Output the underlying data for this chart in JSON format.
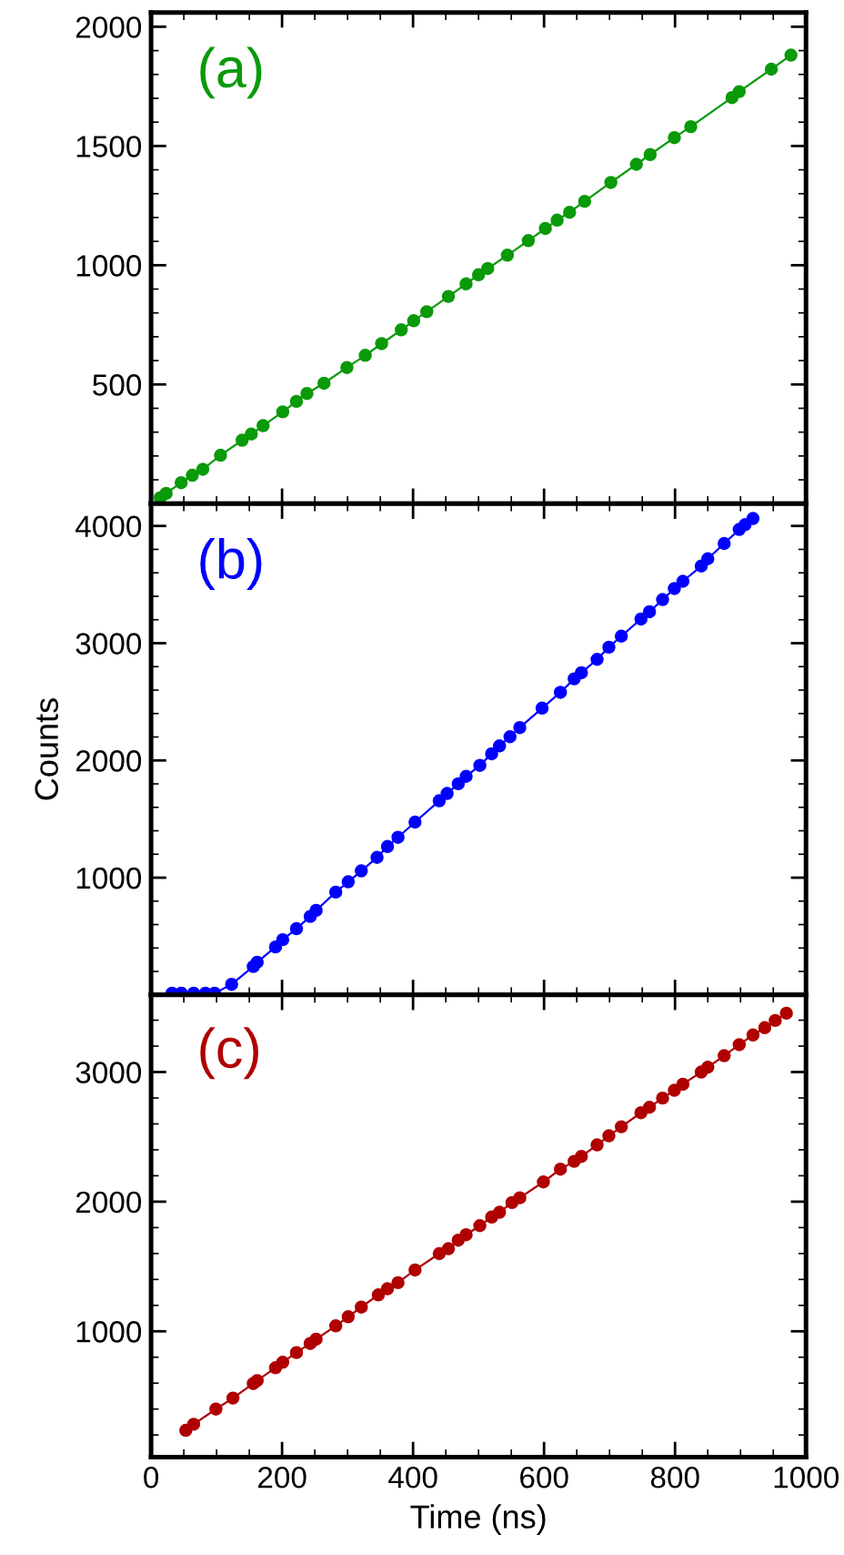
{
  "chart_data": [
    {
      "type": "line",
      "annotations": [
        "(a)"
      ],
      "marker": "circle",
      "grid": false,
      "legend": false,
      "tick_labels": "y",
      "xlim": [
        0,
        1000
      ],
      "xticks": [
        0,
        200,
        400,
        600,
        800,
        1000
      ],
      "ylim": [
        0,
        2060
      ],
      "yticks": [
        500,
        1000,
        1500,
        2000
      ],
      "series": [
        {
          "color": "#0a9a0a",
          "x": [
            14,
            23,
            46,
            63,
            79,
            106,
            139,
            153,
            171,
            201,
            222,
            238,
            264,
            299,
            327,
            352,
            382,
            401,
            421,
            454,
            481,
            500,
            514,
            544,
            576,
            602,
            620,
            639,
            662,
            702,
            741,
            762,
            799,
            824,
            887,
            898,
            947,
            977
          ],
          "values": [
            25,
            43,
            88,
            119,
            144,
            203,
            266,
            292,
            327,
            385,
            429,
            462,
            505,
            571,
            622,
            671,
            729,
            767,
            805,
            869,
            922,
            960,
            986,
            1042,
            1103,
            1154,
            1189,
            1222,
            1268,
            1347,
            1423,
            1464,
            1535,
            1581,
            1703,
            1728,
            1822,
            1881
          ]
        }
      ]
    },
    {
      "type": "line",
      "annotations": [
        "(b)"
      ],
      "marker": "circle",
      "grid": false,
      "legend": false,
      "tick_labels": "y",
      "ylabel": "Counts",
      "xlim": [
        0,
        1000
      ],
      "xticks": [
        0,
        200,
        400,
        600,
        800,
        1000
      ],
      "ylim": [
        0,
        4190
      ],
      "yticks": [
        1000,
        2000,
        3000,
        4000
      ],
      "series": [
        {
          "color": "#0000ff",
          "x": [
            32,
            46,
            65,
            83,
            97,
            123,
            156,
            162,
            190,
            201,
            222,
            243,
            252,
            282,
            301,
            321,
            345,
            361,
            377,
            403,
            440,
            452,
            469,
            481,
            502,
            520,
            532,
            548,
            563,
            597,
            625,
            646,
            657,
            681,
            699,
            718,
            748,
            761,
            781,
            799,
            812,
            840,
            850,
            875,
            898,
            907,
            919
          ],
          "values": [
            15,
            15,
            15,
            15,
            15,
            90,
            242,
            279,
            409,
            471,
            565,
            669,
            721,
            877,
            965,
            1058,
            1173,
            1266,
            1344,
            1474,
            1656,
            1718,
            1801,
            1864,
            1958,
            2057,
            2124,
            2202,
            2280,
            2446,
            2581,
            2696,
            2748,
            2862,
            2966,
            3060,
            3206,
            3268,
            3372,
            3466,
            3528,
            3658,
            3720,
            3850,
            3970,
            4011,
            4063
          ]
        }
      ]
    },
    {
      "type": "line",
      "annotations": [
        "(c)"
      ],
      "marker": "circle",
      "grid": false,
      "legend": false,
      "xlabel": "Time (ns)",
      "xlim": [
        0,
        1000
      ],
      "xticks": [
        0,
        200,
        400,
        600,
        800,
        1000
      ],
      "ylim": [
        30,
        3595
      ],
      "yticks": [
        1000,
        2000,
        3000
      ],
      "series": [
        {
          "color": "#b00000",
          "x": [
            53,
            65,
            99,
            125,
            156,
            162,
            190,
            201,
            222,
            243,
            252,
            282,
            301,
            321,
            347,
            361,
            377,
            403,
            440,
            454,
            469,
            481,
            502,
            520,
            532,
            551,
            563,
            599,
            625,
            646,
            657,
            681,
            699,
            718,
            748,
            761,
            781,
            799,
            812,
            840,
            850,
            875,
            898,
            919,
            937,
            953,
            970
          ],
          "values": [
            236,
            283,
            400,
            485,
            597,
            620,
            719,
            761,
            836,
            906,
            939,
            1042,
            1112,
            1187,
            1281,
            1328,
            1375,
            1473,
            1599,
            1637,
            1703,
            1745,
            1815,
            1881,
            1918,
            1993,
            2030,
            2152,
            2251,
            2311,
            2349,
            2438,
            2508,
            2578,
            2686,
            2728,
            2799,
            2859,
            2906,
            3000,
            3037,
            3126,
            3211,
            3286,
            3342,
            3398,
            3454
          ]
        }
      ]
    }
  ]
}
